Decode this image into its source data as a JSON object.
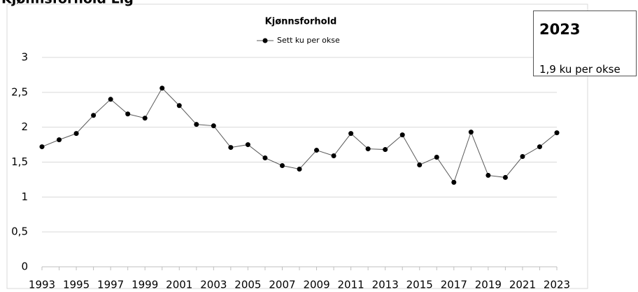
{
  "page_heading": "Kjønnsforhold Lig",
  "tooltip": {
    "title": "2023",
    "text": "1,9 ku per okse"
  },
  "chart_data": {
    "type": "line",
    "title": "Kjønnsforhold",
    "categories": [
      "1993",
      null,
      "1995",
      null,
      "1997",
      null,
      "1999",
      null,
      "2001",
      null,
      "2003",
      null,
      "2005",
      null,
      "2007",
      null,
      "2009",
      null,
      "2011",
      null,
      "2013",
      null,
      "2015",
      null,
      "2017",
      null,
      "2019",
      null,
      "2021",
      null,
      "2023"
    ],
    "series": [
      {
        "name": "Sett ku per okse",
        "color": "#000000",
        "values": [
          1.72,
          1.82,
          1.91,
          2.17,
          2.4,
          2.19,
          2.13,
          2.56,
          2.31,
          2.04,
          2.02,
          1.71,
          1.75,
          1.56,
          1.45,
          1.4,
          1.67,
          1.59,
          1.91,
          1.69,
          1.68,
          1.89,
          1.46,
          1.57,
          1.21,
          1.93,
          1.31,
          1.28,
          1.58,
          1.72,
          1.92
        ]
      }
    ],
    "ylim": [
      0,
      3
    ],
    "yticks": [
      0,
      {
        "value": 0.5,
        "label": "0,5"
      },
      1,
      {
        "value": 1.5,
        "label": "1,5"
      },
      2,
      {
        "value": 2.5,
        "label": "2,5"
      },
      3
    ],
    "grid": true,
    "legend": "top"
  }
}
